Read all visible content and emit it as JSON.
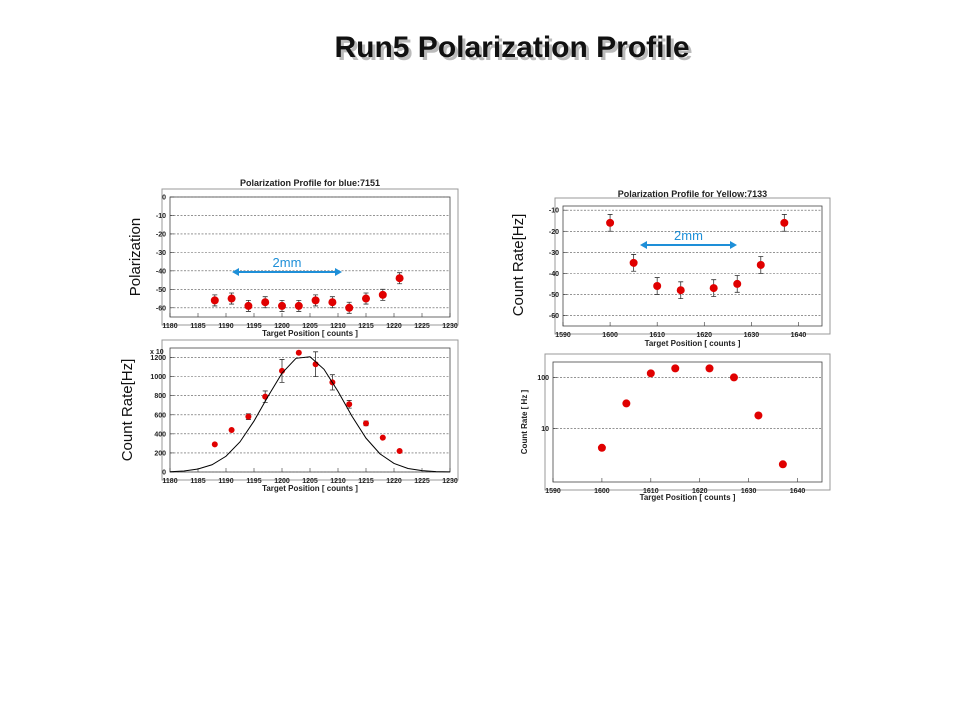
{
  "title": "Run5 Polarization Profile",
  "chart_data": [
    {
      "type": "scatter",
      "title": "Polarization Profile for blue:7151",
      "xlabel": "Target Position [ counts ]",
      "ylabel": "Polarization",
      "xlim": [
        1180,
        1230
      ],
      "xticks": [
        1180,
        1185,
        1190,
        1195,
        1200,
        1205,
        1210,
        1215,
        1220,
        1225,
        1230
      ],
      "ylim": [
        -65,
        0
      ],
      "yticks": [
        -60,
        -50,
        -40,
        -30,
        -20,
        -10,
        0
      ],
      "grid": true,
      "annotation": "2mm",
      "series": [
        {
          "color": "#e00000",
          "x": [
            1188,
            1191,
            1194,
            1197,
            1200,
            1203,
            1206,
            1209,
            1212,
            1215,
            1218,
            1221
          ],
          "values": [
            -56,
            -55,
            -59,
            -57,
            -59,
            -59,
            -56,
            -57,
            -60,
            -55,
            -53,
            -44
          ],
          "errors": [
            3,
            3,
            3,
            3,
            3,
            3,
            3,
            3,
            3,
            3,
            3,
            3
          ]
        }
      ]
    },
    {
      "type": "scatter",
      "xlabel": "Target Position [ counts ]",
      "ylabel": "Count Rate[Hz]",
      "ymultiplier": "x 10",
      "xlim": [
        1180,
        1230
      ],
      "xticks": [
        1180,
        1185,
        1190,
        1195,
        1200,
        1205,
        1210,
        1215,
        1220,
        1225,
        1230
      ],
      "ylim": [
        0,
        1300
      ],
      "yticks": [
        0,
        200,
        400,
        600,
        800,
        1000,
        1200
      ],
      "grid": true,
      "series": [
        {
          "color": "#e00000",
          "x": [
            1188,
            1191,
            1194,
            1197,
            1200,
            1203,
            1206,
            1209,
            1212,
            1215,
            1218,
            1221
          ],
          "values": [
            290,
            440,
            580,
            790,
            1060,
            1250,
            1130,
            940,
            710,
            510,
            360,
            220
          ],
          "errors": [
            0,
            0,
            30,
            60,
            120,
            0,
            130,
            80,
            40,
            25,
            0,
            0
          ]
        },
        {
          "color": "#000000",
          "type": "line",
          "x": [
            1180,
            1182.5,
            1185,
            1187.5,
            1190,
            1192.5,
            1195,
            1197.5,
            1200,
            1202.5,
            1205,
            1207.5,
            1210,
            1212.5,
            1215,
            1217.5,
            1220,
            1222.5,
            1225,
            1227.5,
            1230
          ],
          "values": [
            3,
            11,
            31,
            76,
            165,
            316,
            534,
            793,
            1036,
            1192,
            1208,
            1077,
            845,
            584,
            355,
            190,
            90,
            37,
            14,
            4,
            1
          ]
        }
      ]
    },
    {
      "type": "scatter",
      "title": "Polarization Profile for Yellow:7133",
      "ylabel": "Count Rate[Hz]",
      "xlabel": "Target Position [ counts ]",
      "xlim": [
        1590,
        1645
      ],
      "xticks": [
        1590,
        1600,
        1610,
        1620,
        1630,
        1640
      ],
      "ylim": [
        -65,
        -8
      ],
      "yticks": [
        -60,
        -50,
        -40,
        -30,
        -20,
        -10
      ],
      "grid": true,
      "annotation": "2mm",
      "series": [
        {
          "color": "#e00000",
          "x": [
            1600,
            1605,
            1610,
            1615,
            1622,
            1627,
            1632,
            1637
          ],
          "values": [
            -16,
            -35,
            -46,
            -48,
            -47,
            -45,
            -36,
            -16
          ],
          "errors": [
            4,
            4,
            4,
            4,
            4,
            4,
            4,
            4
          ]
        }
      ]
    },
    {
      "type": "scatter",
      "xlabel": "Target Position [ counts ]",
      "ylabel": "Count Rate [ Hz ]",
      "log_y": true,
      "xlim": [
        1590,
        1645
      ],
      "xticks": [
        1590,
        1600,
        1610,
        1620,
        1630,
        1640
      ],
      "ylim": [
        0.9,
        200
      ],
      "yticks": [
        10,
        100
      ],
      "grid": true,
      "series": [
        {
          "color": "#e00000",
          "x": [
            1600,
            1605,
            1610,
            1615,
            1622,
            1627,
            1632,
            1637
          ],
          "values": [
            4.2,
            31,
            120,
            150,
            150,
            100,
            18,
            2
          ]
        }
      ]
    }
  ]
}
